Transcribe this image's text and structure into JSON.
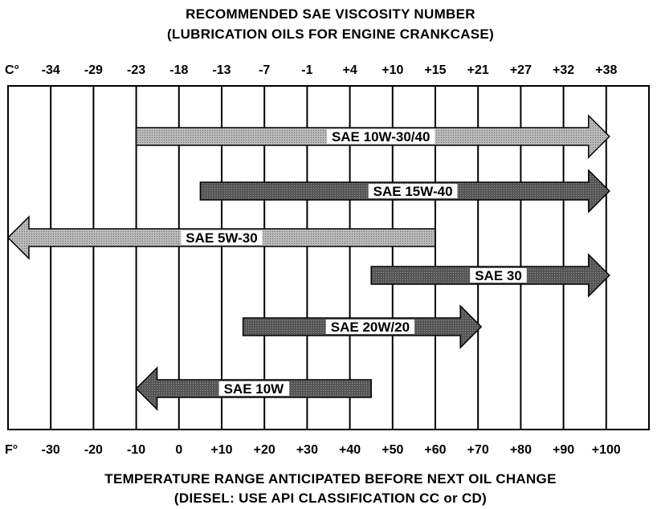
{
  "title": "RECOMMENDED SAE VISCOSITY NUMBER",
  "subtitle": "(LUBRICATION OILS FOR ENGINE CRANKCASE)",
  "footer_title": "TEMPERATURE RANGE ANTICIPATED BEFORE NEXT OIL CHANGE",
  "footer_subtitle": "(DIESEL: USE API CLASSIFICATION CC or CD)",
  "colors": {
    "light_fill": "#a9a9a9",
    "dark_fill": "#4a4a4a",
    "grid": "#000000"
  },
  "chart_data": {
    "type": "bar",
    "orientation": "horizontal-range",
    "x_unit_top": "C°",
    "x_unit_bottom": "F°",
    "celsius_ticks": [
      "-34",
      "-29",
      "-23",
      "-18",
      "-13",
      "-7",
      "-1",
      "+4",
      "+10",
      "+15",
      "+21",
      "+27",
      "+32",
      "+38"
    ],
    "fahrenheit_ticks": [
      "-30",
      "-20",
      "-10",
      "0",
      "+10",
      "+20",
      "+30",
      "+40",
      "+50",
      "+60",
      "+70",
      "+80",
      "+90",
      "+100"
    ],
    "fahrenheit_values": [
      -30,
      -20,
      -10,
      0,
      10,
      20,
      30,
      40,
      50,
      60,
      70,
      80,
      90,
      100
    ],
    "xlim_f": [
      -40,
      110
    ],
    "grid": true,
    "series": [
      {
        "name": "SAE 10W-30/40",
        "min_f": -10,
        "max_f": 100,
        "arrow_left": false,
        "arrow_right": true,
        "shade": "light"
      },
      {
        "name": "SAE 15W-40",
        "min_f": 5,
        "max_f": 100,
        "arrow_left": false,
        "arrow_right": true,
        "shade": "dark"
      },
      {
        "name": "SAE 5W-30",
        "min_f": -40,
        "max_f": 60,
        "arrow_left": true,
        "arrow_right": false,
        "shade": "light"
      },
      {
        "name": "SAE 30",
        "min_f": 45,
        "max_f": 100,
        "arrow_left": false,
        "arrow_right": true,
        "shade": "dark"
      },
      {
        "name": "SAE 20W/20",
        "min_f": 15,
        "max_f": 70,
        "arrow_left": false,
        "arrow_right": true,
        "shade": "dark"
      },
      {
        "name": "SAE 10W",
        "min_f": -10,
        "max_f": 45,
        "arrow_left": true,
        "arrow_right": false,
        "shade": "dark"
      }
    ]
  }
}
